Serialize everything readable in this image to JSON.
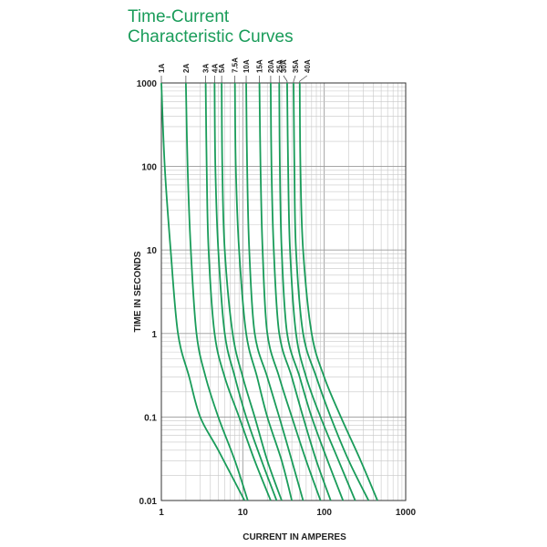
{
  "title": {
    "line1": "Time-Current",
    "line2": "Characteristic Curves"
  },
  "chart_data": {
    "type": "line",
    "title": "Time-Current Characteristic Curves",
    "xlabel": "CURRENT IN AMPERES",
    "ylabel": "TIME IN SECONDS",
    "xscale": "log",
    "yscale": "log",
    "xlim": [
      1,
      1000
    ],
    "ylim": [
      0.01,
      1000
    ],
    "x_ticks": [
      "1",
      "10",
      "100",
      "1000"
    ],
    "y_ticks": [
      "0.01",
      "0.1",
      "1",
      "10",
      "100",
      "1000"
    ],
    "grid": true,
    "line_color": "#1a9c5a",
    "series": [
      {
        "name": "1A",
        "x": [
          1.0,
          1.1,
          1.3,
          1.6,
          2.2,
          3.0,
          5.0,
          10.5
        ],
        "y": [
          1000,
          100,
          10,
          1,
          0.3,
          0.1,
          0.04,
          0.01
        ]
      },
      {
        "name": "2A",
        "x": [
          2.0,
          2.1,
          2.3,
          2.7,
          3.5,
          5.0,
          8.0,
          11.5
        ],
        "y": [
          1000,
          100,
          10,
          1,
          0.3,
          0.1,
          0.03,
          0.01
        ]
      },
      {
        "name": "3A",
        "x": [
          3.5,
          3.6,
          3.8,
          4.5,
          6.0,
          9.0,
          14.0,
          22.0
        ],
        "y": [
          1000,
          100,
          10,
          1,
          0.3,
          0.1,
          0.03,
          0.01
        ]
      },
      {
        "name": "4A",
        "x": [
          4.5,
          4.6,
          5.0,
          6.0,
          8.0,
          11.0,
          17.0,
          26.0
        ],
        "y": [
          1000,
          100,
          10,
          1,
          0.3,
          0.1,
          0.03,
          0.01
        ]
      },
      {
        "name": "5A",
        "x": [
          5.5,
          5.6,
          6.0,
          7.5,
          10.0,
          14.0,
          20.0,
          30.0
        ],
        "y": [
          1000,
          100,
          10,
          1,
          0.3,
          0.1,
          0.03,
          0.01
        ]
      },
      {
        "name": "7.5A",
        "x": [
          8.0,
          8.2,
          9.0,
          11.0,
          15.0,
          20.0,
          30.0,
          40.0
        ],
        "y": [
          1000,
          100,
          10,
          1,
          0.3,
          0.1,
          0.03,
          0.01
        ]
      },
      {
        "name": "10A",
        "x": [
          11.0,
          11.3,
          12.0,
          14.0,
          20.0,
          28.0,
          40.0,
          55.0
        ],
        "y": [
          1000,
          100,
          10,
          1,
          0.3,
          0.1,
          0.03,
          0.01
        ]
      },
      {
        "name": "15A",
        "x": [
          16.0,
          16.5,
          17.5,
          20.0,
          28.0,
          40.0,
          60.0,
          90.0
        ],
        "y": [
          1000,
          100,
          10,
          1,
          0.3,
          0.1,
          0.03,
          0.01
        ]
      },
      {
        "name": "20A",
        "x": [
          22.0,
          22.5,
          24.0,
          28.0,
          40.0,
          55.0,
          80.0,
          120.0
        ],
        "y": [
          1000,
          100,
          10,
          1,
          0.3,
          0.1,
          0.03,
          0.01
        ]
      },
      {
        "name": "25A",
        "x": [
          28.0,
          28.5,
          30.0,
          35.0,
          50.0,
          70.0,
          110.0,
          170.0
        ],
        "y": [
          1000,
          100,
          10,
          1,
          0.3,
          0.1,
          0.03,
          0.01
        ]
      },
      {
        "name": "30A",
        "x": [
          35.0,
          36.0,
          38.0,
          45.0,
          60.0,
          90.0,
          150.0,
          240.0
        ],
        "y": [
          1000,
          100,
          10,
          1,
          0.3,
          0.1,
          0.03,
          0.01
        ]
      },
      {
        "name": "35A",
        "x": [
          42.0,
          43.0,
          45.0,
          55.0,
          80.0,
          120.0,
          200.0,
          350.0
        ],
        "y": [
          1000,
          100,
          10,
          1,
          0.3,
          0.1,
          0.03,
          0.01
        ]
      },
      {
        "name": "40A",
        "x": [
          50.0,
          51.0,
          55.0,
          70.0,
          100.0,
          160.0,
          280.0,
          450.0
        ],
        "y": [
          1000,
          100,
          10,
          1,
          0.3,
          0.1,
          0.03,
          0.01
        ]
      }
    ]
  }
}
